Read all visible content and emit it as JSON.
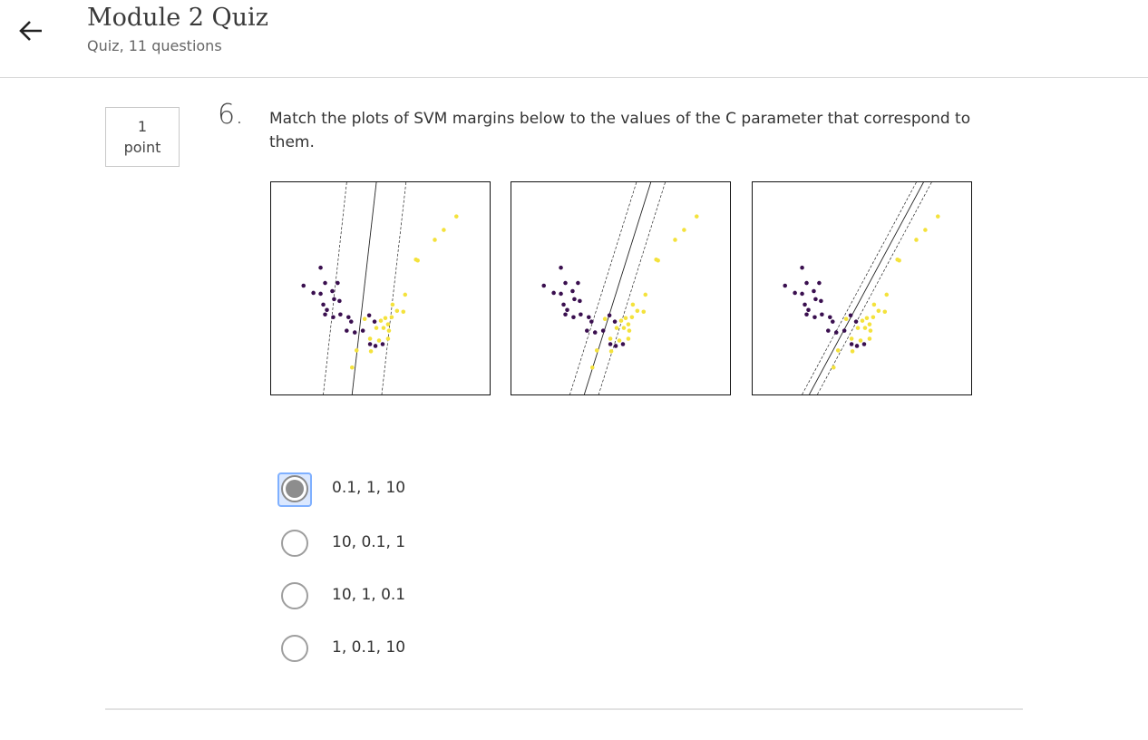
{
  "header": {
    "back_icon": "arrow-left-icon",
    "title": "Module 2 Quiz",
    "subtitle": "Quiz, 11 questions"
  },
  "question": {
    "points_value": "1",
    "points_unit": "point",
    "number": "6.",
    "text": "Match the plots of SVM margins below to the values of the C parameter that correspond to them."
  },
  "colors": {
    "class_purple": "#3a0f4f",
    "class_yellow": "#f4e23c",
    "focus_ring": "#7fb0ff"
  },
  "options": [
    {
      "label": "0.1, 1, 10",
      "selected": true
    },
    {
      "label": "10, 0.1, 1",
      "selected": false
    },
    {
      "label": "10, 1, 0.1",
      "selected": false
    },
    {
      "label": "1, 0.1, 10",
      "selected": false
    }
  ]
}
